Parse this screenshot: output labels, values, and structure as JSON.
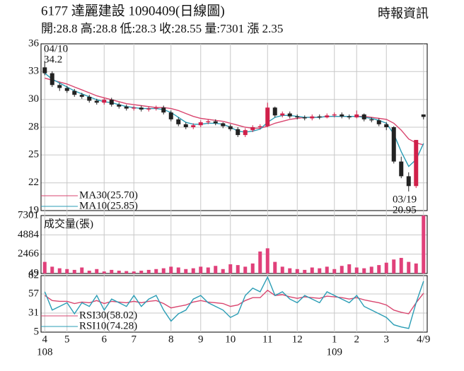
{
  "chart_data": {
    "type": "candlestick",
    "title": "6177  達麗建設 1090409(日線圖)",
    "source": "時報資訊",
    "subtitle": "開:28.8 高:28.8 低:28.3 收:28.55 量:7301 漲 2.35",
    "categories": [
      "4",
      null,
      null,
      "5",
      null,
      null,
      null,
      null,
      "6",
      null,
      null,
      null,
      "7",
      null,
      null,
      null,
      null,
      "8",
      null,
      null,
      null,
      "9",
      null,
      null,
      null,
      "10",
      null,
      null,
      null,
      null,
      "11",
      null,
      null,
      null,
      "12",
      null,
      null,
      null,
      null,
      "1",
      null,
      null,
      "2",
      null,
      null,
      null,
      "3",
      null,
      null,
      null,
      null,
      "4/9"
    ],
    "year_labels": [
      "108",
      null,
      null,
      null,
      null,
      null,
      null,
      null,
      null,
      null,
      null,
      null,
      null,
      null,
      null,
      null,
      null,
      null,
      null,
      null,
      null,
      null,
      null,
      null,
      null,
      null,
      null,
      null,
      null,
      null,
      null,
      null,
      null,
      null,
      null,
      null,
      null,
      null,
      null,
      "109",
      null,
      null,
      null,
      null,
      null,
      null,
      null,
      null,
      null,
      null,
      null,
      null
    ],
    "open": [
      33.6,
      33.0,
      31.8,
      31.5,
      31.2,
      30.8,
      30.6,
      30.2,
      30.0,
      30.3,
      29.8,
      29.6,
      29.4,
      29.5,
      29.3,
      29.4,
      29.5,
      29.0,
      28.3,
      27.8,
      27.5,
      27.7,
      28.0,
      28.1,
      27.9,
      27.6,
      27.3,
      26.7,
      27.2,
      27.5,
      27.6,
      29.5,
      28.7,
      28.9,
      28.6,
      28.5,
      28.4,
      28.6,
      28.5,
      28.7,
      28.8,
      28.6,
      28.5,
      28.8,
      28.3,
      28.2,
      27.8,
      27.5,
      24.0,
      22.5,
      21.5,
      28.8
    ],
    "high": [
      34.2,
      33.2,
      32.0,
      31.7,
      31.4,
      31.0,
      30.8,
      30.4,
      30.5,
      30.5,
      30.0,
      29.8,
      29.7,
      29.7,
      29.6,
      29.7,
      29.7,
      29.2,
      28.5,
      28.0,
      27.9,
      28.2,
      28.3,
      28.3,
      28.0,
      27.8,
      27.5,
      27.4,
      27.7,
      27.8,
      30.0,
      29.6,
      29.1,
      29.1,
      28.8,
      28.7,
      28.8,
      28.8,
      28.9,
      29.0,
      29.0,
      28.8,
      29.2,
      28.9,
      28.5,
      28.4,
      28.0,
      27.6,
      24.5,
      22.9,
      26.2,
      28.8
    ],
    "low": [
      32.8,
      31.6,
      31.2,
      31.0,
      30.6,
      30.4,
      30.0,
      29.8,
      29.8,
      29.6,
      29.4,
      29.2,
      29.2,
      29.1,
      29.1,
      29.2,
      28.8,
      28.1,
      27.6,
      27.3,
      27.3,
      27.5,
      27.8,
      27.7,
      27.4,
      27.1,
      26.5,
      26.5,
      27.0,
      27.3,
      27.5,
      28.5,
      28.5,
      28.4,
      28.3,
      28.2,
      28.2,
      28.3,
      28.4,
      28.5,
      28.4,
      28.3,
      28.4,
      28.1,
      28.0,
      27.6,
      27.2,
      23.8,
      22.3,
      20.95,
      21.3,
      28.3
    ],
    "close": [
      33.0,
      31.8,
      31.5,
      31.2,
      30.8,
      30.6,
      30.2,
      30.0,
      30.3,
      29.8,
      29.6,
      29.4,
      29.5,
      29.3,
      29.4,
      29.5,
      29.0,
      28.3,
      27.8,
      27.5,
      27.7,
      28.0,
      28.1,
      27.9,
      27.6,
      27.3,
      26.7,
      27.2,
      27.5,
      27.6,
      29.5,
      28.7,
      28.9,
      28.6,
      28.5,
      28.4,
      28.6,
      28.5,
      28.7,
      28.8,
      28.6,
      28.5,
      28.8,
      28.3,
      28.2,
      27.8,
      27.5,
      24.0,
      22.5,
      21.5,
      26.2,
      28.55
    ],
    "up_color": "#d0204a",
    "down_color": "#222222",
    "ylim": [
      19,
      36
    ],
    "yticks": [
      36,
      {
        "value": 33.17,
        "label": "33"
      },
      {
        "value": 30.33,
        "label": "30"
      },
      {
        "value": 27.5,
        "label": "28"
      },
      {
        "value": 24.67,
        "label": "25"
      },
      {
        "value": 21.83,
        "label": "22"
      },
      19
    ],
    "grid": true,
    "series": [
      {
        "name": "MA30(25.70)",
        "color": "#d9466f",
        "values": [
          32.5,
          32.3,
          32.1,
          31.9,
          31.6,
          31.3,
          31.0,
          30.7,
          30.5,
          30.3,
          30.1,
          29.9,
          29.8,
          29.7,
          29.6,
          29.5,
          29.5,
          29.4,
          29.2,
          28.9,
          28.6,
          28.4,
          28.3,
          28.2,
          28.1,
          27.9,
          27.7,
          27.5,
          27.4,
          27.4,
          27.6,
          27.9,
          28.1,
          28.3,
          28.4,
          28.5,
          28.5,
          28.5,
          28.6,
          28.6,
          28.6,
          28.6,
          28.6,
          28.6,
          28.5,
          28.4,
          28.3,
          27.9,
          27.2,
          26.3,
          25.9,
          25.7
        ]
      },
      {
        "name": "MA10(25.85)",
        "color": "#2a9db5",
        "values": [
          33.0,
          32.4,
          32.0,
          31.6,
          31.2,
          30.9,
          30.6,
          30.3,
          30.1,
          30.0,
          29.8,
          29.6,
          29.5,
          29.4,
          29.4,
          29.4,
          29.3,
          29.0,
          28.5,
          28.0,
          27.8,
          27.8,
          27.9,
          27.9,
          27.8,
          27.5,
          27.1,
          27.0,
          27.1,
          27.3,
          28.0,
          28.5,
          28.7,
          28.7,
          28.6,
          28.5,
          28.5,
          28.5,
          28.6,
          28.6,
          28.6,
          28.6,
          28.6,
          28.5,
          28.4,
          28.2,
          27.9,
          26.8,
          25.0,
          23.5,
          24.2,
          25.85
        ]
      }
    ],
    "annotations": [
      {
        "date": "04/10",
        "value": 34.2
      },
      {
        "date": "03/19",
        "value": 20.95
      }
    ],
    "volume": {
      "label": "成交量(張)",
      "color": "#e0407a",
      "values": [
        1500,
        900,
        700,
        600,
        500,
        800,
        400,
        600,
        300,
        500,
        400,
        350,
        300,
        400,
        500,
        600,
        700,
        900,
        800,
        600,
        700,
        900,
        800,
        1000,
        600,
        1200,
        1100,
        900,
        1300,
        2800,
        3200,
        1500,
        900,
        700,
        600,
        500,
        800,
        700,
        900,
        600,
        1000,
        1200,
        800,
        700,
        900,
        1100,
        1400,
        1800,
        2000,
        1500,
        1300,
        7301
      ],
      "ylim": [
        49,
        7301
      ],
      "yticks": [
        7301,
        4884,
        2466,
        49
      ]
    },
    "rsi": {
      "ylim": [
        5,
        82
      ],
      "yticks": [
        82,
        57,
        31,
        5
      ],
      "series": [
        {
          "name": "RSI30(58.02)",
          "color": "#d9466f",
          "values": [
            55,
            48,
            47,
            47,
            44,
            46,
            45,
            48,
            44,
            47,
            46,
            45,
            47,
            45,
            47,
            48,
            44,
            38,
            40,
            42,
            46,
            48,
            46,
            45,
            44,
            40,
            42,
            48,
            52,
            52,
            62,
            55,
            56,
            53,
            51,
            53,
            52,
            51,
            54,
            53,
            52,
            50,
            52,
            49,
            47,
            45,
            42,
            35,
            32,
            30,
            45,
            58.02
          ]
        },
        {
          "name": "RSI10(74.28)",
          "color": "#2a9db5",
          "values": [
            60,
            35,
            40,
            45,
            30,
            45,
            40,
            55,
            35,
            50,
            45,
            40,
            55,
            40,
            50,
            55,
            35,
            20,
            30,
            35,
            50,
            55,
            45,
            40,
            35,
            25,
            30,
            55,
            65,
            60,
            80,
            55,
            60,
            50,
            45,
            55,
            50,
            45,
            60,
            55,
            50,
            45,
            55,
            40,
            35,
            30,
            25,
            15,
            12,
            10,
            45,
            74.28
          ]
        }
      ]
    }
  }
}
